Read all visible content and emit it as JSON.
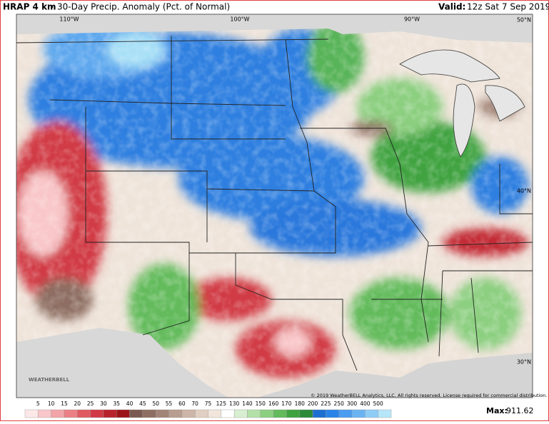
{
  "header": {
    "title": "HRAP 4 km",
    "separator": "•",
    "subtitle": "30-Day Precip. Anomaly (Pct. of Normal)",
    "valid_label": "Valid:",
    "valid_time": "12z Sat 7 Sep 2019"
  },
  "map": {
    "lon_labels": [
      "110°W",
      "100°W",
      "90°W"
    ],
    "lat_labels": [
      "50°N",
      "40°N",
      "30°N"
    ],
    "copyright": "© 2019 WeatherBELL Analytics, LLC. All rights reserved. License required for commercial distribution.",
    "logo": "WEATHERBELL"
  },
  "legend": {
    "labels": [
      5,
      10,
      15,
      20,
      25,
      30,
      35,
      40,
      45,
      50,
      55,
      60,
      70,
      75,
      125,
      130,
      140,
      150,
      160,
      170,
      180,
      200,
      225,
      250,
      300,
      400,
      500
    ],
    "colors": [
      "#fde8e8",
      "#f9c7c9",
      "#f3a4a8",
      "#ec7f86",
      "#e05a62",
      "#d13a44",
      "#b8222c",
      "#9c1219",
      "#7a5a50",
      "#8e6e62",
      "#a38578",
      "#b89d90",
      "#cdb5a8",
      "#e2cfc3",
      "#f2e6dc",
      "#ffffff",
      "#d8efd2",
      "#b3e0a8",
      "#8ccf80",
      "#63bb5c",
      "#3fa33f",
      "#2b8a3a",
      "#1c6fd0",
      "#2a84e8",
      "#4a9cf0",
      "#6ab4f4",
      "#8fcdf7",
      "#b6e6fa"
    ]
  },
  "max": {
    "label": "Max:",
    "value": "911.62"
  }
}
